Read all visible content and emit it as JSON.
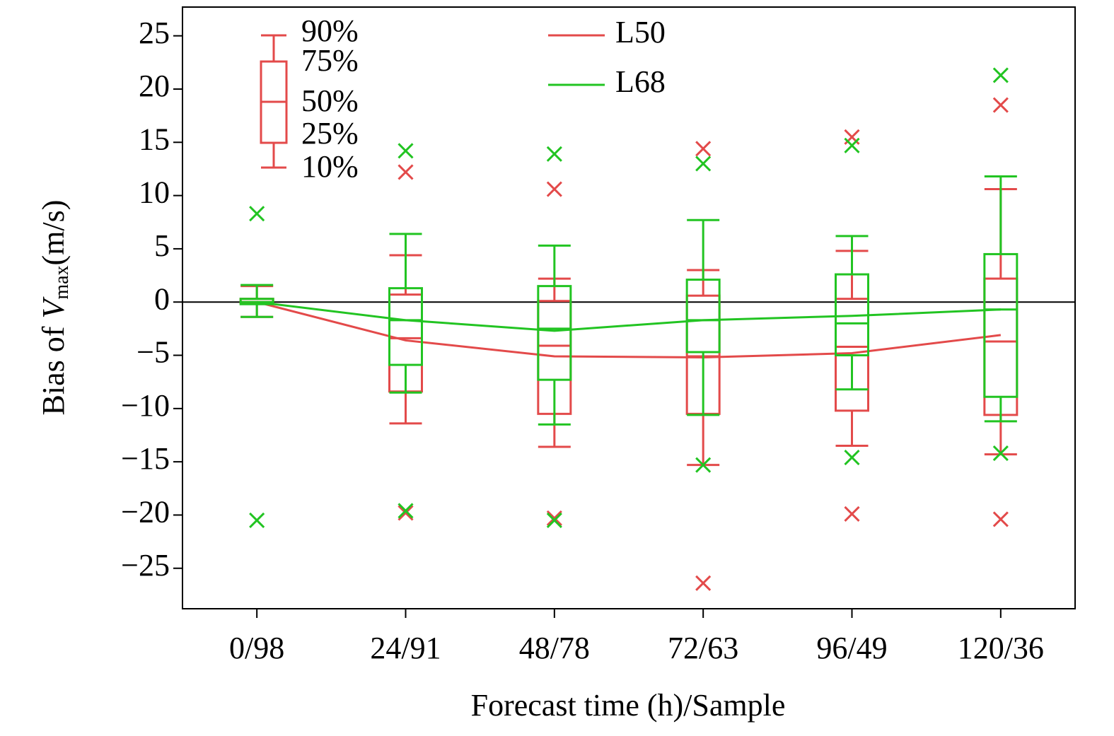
{
  "chart_data": {
    "type": "box",
    "x_label": "Forecast time (h)/Sample",
    "y_label": {
      "prefix": "Bias of",
      "symbol": "V",
      "subscript": "max",
      "suffix": "(m/s)"
    },
    "categories": [
      "0/98",
      "24/91",
      "48/78",
      "72/63",
      "96/49",
      "120/36"
    ],
    "ylim": [
      -28.8,
      27.7
    ],
    "yticks": [
      {
        "value": -25,
        "label": "−25"
      },
      {
        "value": -20,
        "label": "−20"
      },
      {
        "value": -15,
        "label": "−15"
      },
      {
        "value": -10,
        "label": "−10"
      },
      {
        "value": -5,
        "label": "−5"
      },
      0,
      5,
      10,
      15,
      20,
      25
    ],
    "hline": 0,
    "box_legend": {
      "color": "#e34a4a",
      "labels": [
        "90%",
        "75%",
        "50%",
        "25%",
        "10%"
      ]
    },
    "series": [
      {
        "name": "L50",
        "color": "#e34a4a",
        "p90": [
          1.5,
          4.4,
          2.2,
          3.0,
          4.8,
          10.6
        ],
        "p75": [
          0.3,
          0.7,
          0.1,
          0.6,
          0.3,
          2.2
        ],
        "p50": [
          0,
          -3.4,
          -4.1,
          -5.1,
          -4.2,
          -3.7
        ],
        "p25": [
          -0.1,
          -8.4,
          -10.5,
          -10.5,
          -10.2,
          -10.6
        ],
        "p10": [
          -1.4,
          -11.4,
          -13.6,
          -15.3,
          -13.5,
          -14.3
        ],
        "mean": [
          0,
          -3.6,
          -5.1,
          -5.2,
          -4.8,
          -3.1
        ],
        "max": [
          null,
          12.2,
          10.6,
          14.4,
          15.5,
          18.5
        ],
        "min": [
          null,
          -19.8,
          -20.3,
          -26.4,
          -19.9,
          -20.4
        ]
      },
      {
        "name": "L68",
        "color": "#22c422",
        "p90": [
          1.6,
          6.4,
          5.3,
          7.7,
          6.2,
          11.8
        ],
        "p75": [
          0.3,
          1.3,
          1.5,
          2.1,
          2.6,
          4.5
        ],
        "p50": [
          0,
          -1.7,
          -2.5,
          -1.7,
          -2.0,
          -0.7
        ],
        "p25": [
          -0.2,
          -5.9,
          -7.3,
          -4.7,
          -5.0,
          -8.9
        ],
        "p10": [
          -1.4,
          -8.5,
          -11.5,
          -10.6,
          -8.2,
          -11.2
        ],
        "mean": [
          0,
          -1.7,
          -2.7,
          -1.7,
          -1.3,
          -0.7
        ],
        "max": [
          8.3,
          14.2,
          13.9,
          13.0,
          14.7,
          21.3
        ],
        "min": [
          -20.5,
          -19.6,
          -20.5,
          -15.3,
          -14.6,
          -14.2
        ]
      }
    ]
  }
}
